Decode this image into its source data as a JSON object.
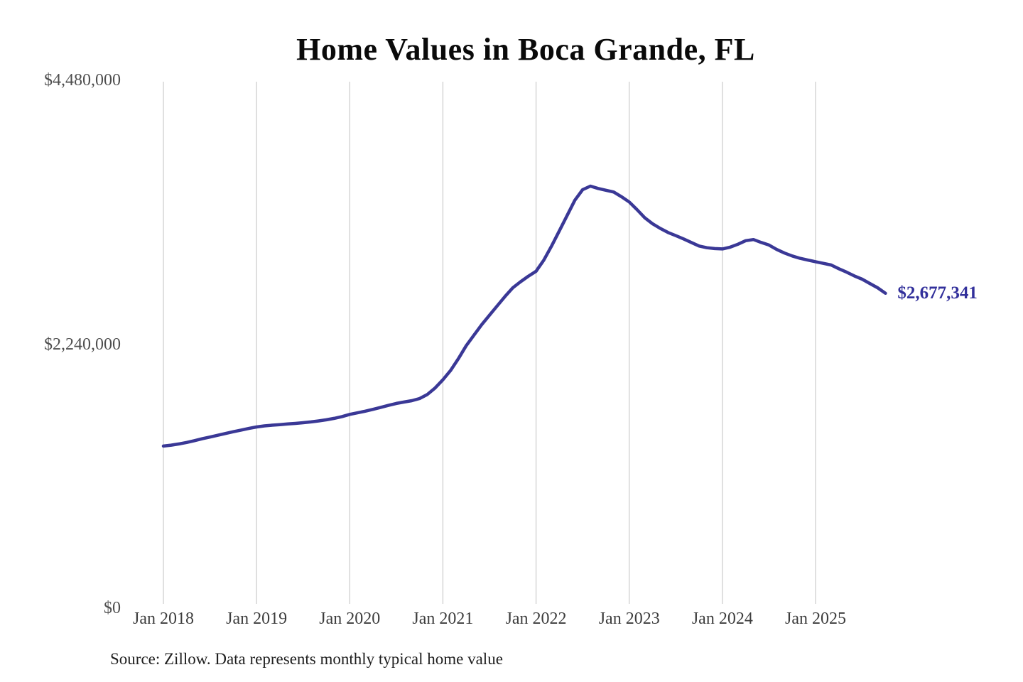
{
  "chart": {
    "title": "Home Values in Boca Grande, FL",
    "end_label": "$2,677,341",
    "source": "Source: Zillow. Data represents monthly typical home value"
  },
  "chart_data": {
    "type": "line",
    "title": "Home Values in Boca Grande, FL",
    "series_name": "Monthly typical home value",
    "x_tick_labels": [
      "Jan 2018",
      "Jan 2019",
      "Jan 2020",
      "Jan 2021",
      "Jan 2022",
      "Jan 2023",
      "Jan 2024",
      "Jan 2025"
    ],
    "y_tick_labels": [
      "$4,480,000",
      "$2,240,000",
      "$0"
    ],
    "y_tick_values": [
      4480000,
      2240000,
      0
    ],
    "ylim": [
      0,
      4480000
    ],
    "grid": "vertical-only",
    "legend": "none",
    "x": [
      "2018-01",
      "2018-02",
      "2018-03",
      "2018-04",
      "2018-05",
      "2018-06",
      "2018-07",
      "2018-08",
      "2018-09",
      "2018-10",
      "2018-11",
      "2018-12",
      "2019-01",
      "2019-02",
      "2019-03",
      "2019-04",
      "2019-05",
      "2019-06",
      "2019-07",
      "2019-08",
      "2019-09",
      "2019-10",
      "2019-11",
      "2019-12",
      "2020-01",
      "2020-02",
      "2020-03",
      "2020-04",
      "2020-05",
      "2020-06",
      "2020-07",
      "2020-08",
      "2020-09",
      "2020-10",
      "2020-11",
      "2020-12",
      "2021-01",
      "2021-02",
      "2021-03",
      "2021-04",
      "2021-05",
      "2021-06",
      "2021-07",
      "2021-08",
      "2021-09",
      "2021-10",
      "2021-11",
      "2021-12",
      "2022-01",
      "2022-02",
      "2022-03",
      "2022-04",
      "2022-05",
      "2022-06",
      "2022-07",
      "2022-08",
      "2022-09",
      "2022-10",
      "2022-11",
      "2022-12",
      "2023-01",
      "2023-02",
      "2023-03",
      "2023-04",
      "2023-05",
      "2023-06",
      "2023-07",
      "2023-08",
      "2023-09",
      "2023-10",
      "2023-11",
      "2023-12",
      "2024-01",
      "2024-02",
      "2024-03",
      "2024-04",
      "2024-05",
      "2024-06",
      "2024-07",
      "2024-08",
      "2024-09",
      "2024-10",
      "2024-11",
      "2024-12",
      "2025-01",
      "2025-02",
      "2025-03",
      "2025-04",
      "2025-05",
      "2025-06",
      "2025-07",
      "2025-08",
      "2025-09",
      "2025-10"
    ],
    "values": [
      1375000,
      1383000,
      1393000,
      1406000,
      1421000,
      1437000,
      1452000,
      1467000,
      1482000,
      1497000,
      1511000,
      1525000,
      1538000,
      1547000,
      1553000,
      1558000,
      1563000,
      1568000,
      1574000,
      1581000,
      1589000,
      1599000,
      1611000,
      1626000,
      1645000,
      1658000,
      1672000,
      1688000,
      1705000,
      1722000,
      1738000,
      1750000,
      1762000,
      1780000,
      1815000,
      1870000,
      1940000,
      2020000,
      2120000,
      2230000,
      2320000,
      2410000,
      2490000,
      2570000,
      2650000,
      2724000,
      2775000,
      2822000,
      2865000,
      2960000,
      3080000,
      3210000,
      3340000,
      3470000,
      3560000,
      3590000,
      3570000,
      3555000,
      3540000,
      3500000,
      3455000,
      3390000,
      3320000,
      3270000,
      3230000,
      3195000,
      3168000,
      3140000,
      3110000,
      3080000,
      3065000,
      3058000,
      3055000,
      3070000,
      3095000,
      3125000,
      3135000,
      3110000,
      3088000,
      3050000,
      3020000,
      2995000,
      2975000,
      2960000,
      2946000,
      2932000,
      2918000,
      2886000,
      2857000,
      2825000,
      2797000,
      2760000,
      2724000,
      2677341
    ],
    "end_value": 2677341,
    "end_value_label": "$2,677,341",
    "source": "Source: Zillow. Data represents monthly typical home value",
    "colors": {
      "line": "#3a3896",
      "end_label": "#32309b",
      "gridline": "#cfcfcf",
      "title": "#0a0a0a",
      "y_tick": "#4f4f4f",
      "x_tick": "#3d3d3d",
      "source_text": "#1f1f1f",
      "background": "#ffffff"
    }
  }
}
